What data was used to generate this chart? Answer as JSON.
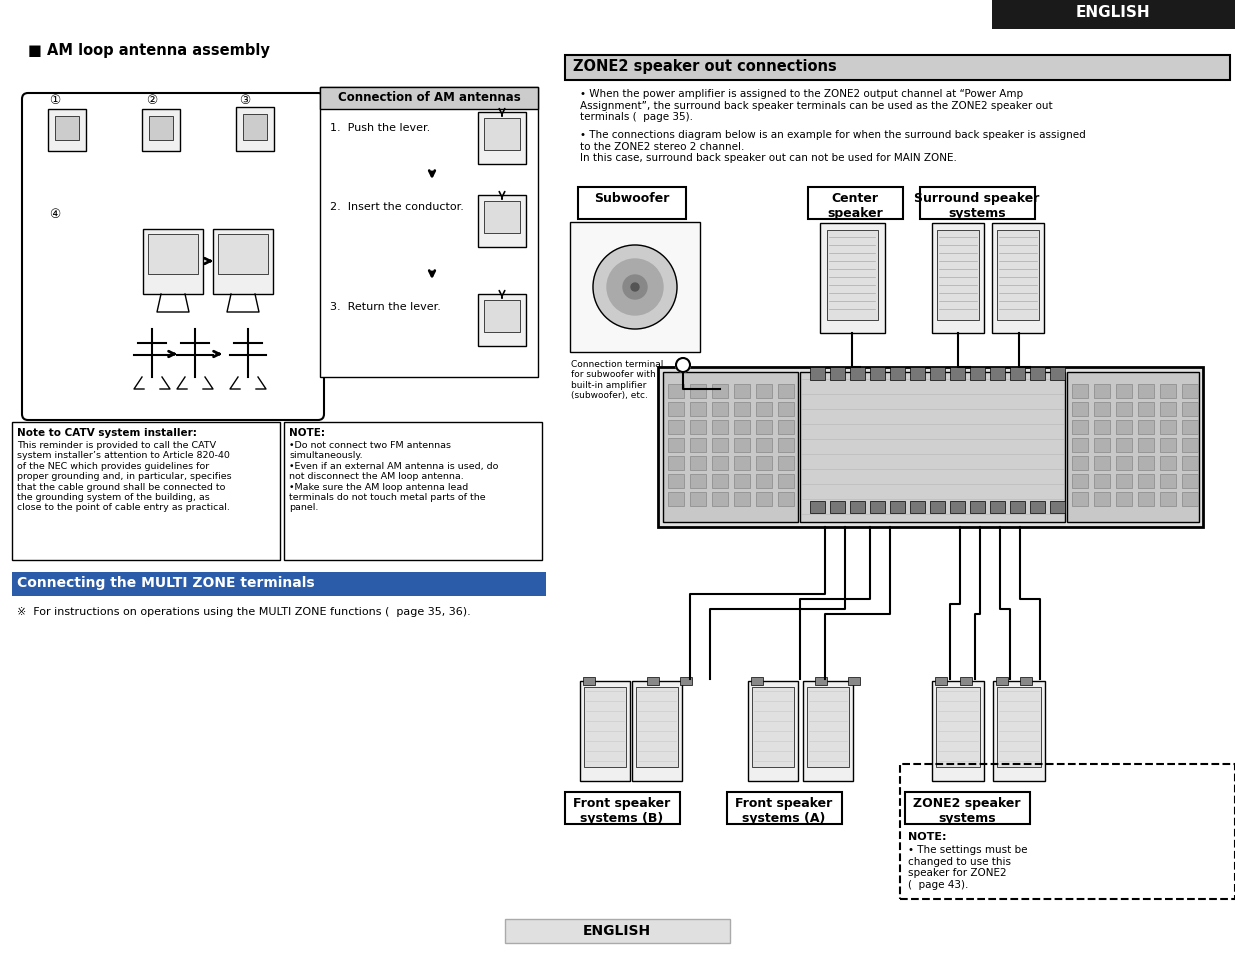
{
  "page_bg": "#ffffff",
  "header_bg": "#1a1a1a",
  "header_text": "ENGLISH",
  "header_text_color": "#ffffff",
  "section_bg": "#cccccc",
  "zone2_title": "ZONE2 speaker out connections",
  "zone2_bullet1": "When the power amplifier is assigned to the ZONE2 output channel at “Power Amp\nAssignment”, the surround back speaker terminals can be used as the ZONE2 speaker out\nterminals (  page 35).",
  "zone2_bullet2": "The connections diagram below is an example for when the surround back speaker is assigned\nto the ZONE2 stereo 2 channel.\nIn this case, surround back speaker out can not be used for MAIN ZONE.",
  "am_title": "■ AM loop antenna assembly",
  "conn_title": "Connection of AM antennas",
  "conn_step1": "1.  Push the lever.",
  "conn_step2": "2.  Insert the conductor.",
  "conn_step3": "3.  Return the lever.",
  "catv_title": "Note to CATV system installer:",
  "catv_text": "This reminder is provided to call the CATV\nsystem installer’s attention to Article 820-40\nof the NEC which provides guidelines for\nproper grounding and, in particular, specifies\nthat the cable ground shall be connected to\nthe grounding system of the building, as\nclose to the point of cable entry as practical.",
  "note_title": "NOTE:",
  "note_text": "•Do not connect two FM antennas\nsimultaneously.\n•Even if an external AM antenna is used, do\nnot disconnect the AM loop antenna.\n•Make sure the AM loop antenna lead\nterminals do not touch metal parts of the\npanel.",
  "multizone_title": "Connecting the MULTI ZONE terminals",
  "multizone_text": "※  For instructions on operations using the MULTI ZONE functions (  page 35, 36).",
  "subwoofer_label": "Subwoofer",
  "center_label": "Center\nspeaker",
  "surround_label": "Surround speaker\nsystems",
  "front_b_label": "Front speaker\nsystems (B)",
  "front_a_label": "Front speaker\nsystems (A)",
  "zone2_speaker_label": "ZONE2 speaker\nsystems",
  "zone2_note_title": "NOTE:",
  "zone2_note_text": "• The settings must be\nchanged to use this\nspeaker for ZONE2\n(  page 43).",
  "conn_terminal_text": "Connection terminal\nfor subwoofer with\nbuilt-in amplifier\n(subwoofer), etc.",
  "footer_text": "ENGLISH",
  "footer_bg": "#e0e0e0",
  "multizone_bar_color": "#2a5caa"
}
